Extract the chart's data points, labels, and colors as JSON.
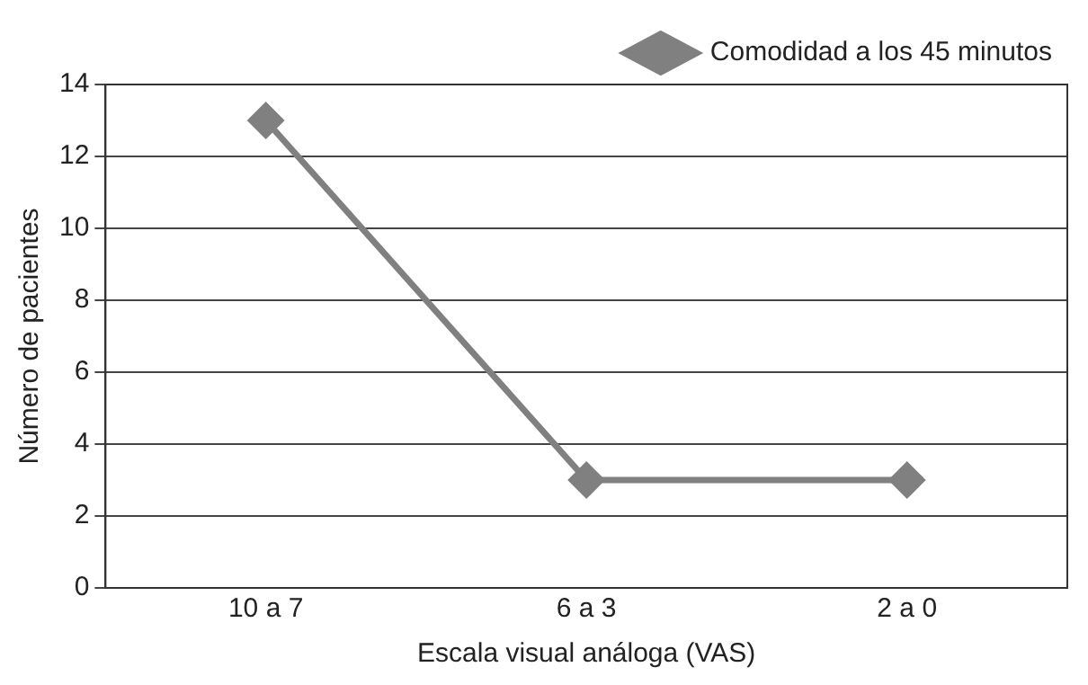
{
  "chart_data": {
    "type": "line",
    "xlabel": "Escala visual análoga (VAS)",
    "ylabel": "Número de pacientes",
    "categories": [
      "10 a 7",
      "6 a 3",
      "2 a 0"
    ],
    "series": [
      {
        "name": "Comodidad a los 45 minutos",
        "color": "#808080",
        "values": [
          13,
          3,
          3
        ]
      }
    ],
    "ylim": [
      0,
      14
    ],
    "yticks": [
      0,
      2,
      4,
      6,
      8,
      10,
      12,
      14
    ],
    "grid": "y",
    "legend": "top right",
    "marker": "diamond",
    "line_style": "solid"
  }
}
